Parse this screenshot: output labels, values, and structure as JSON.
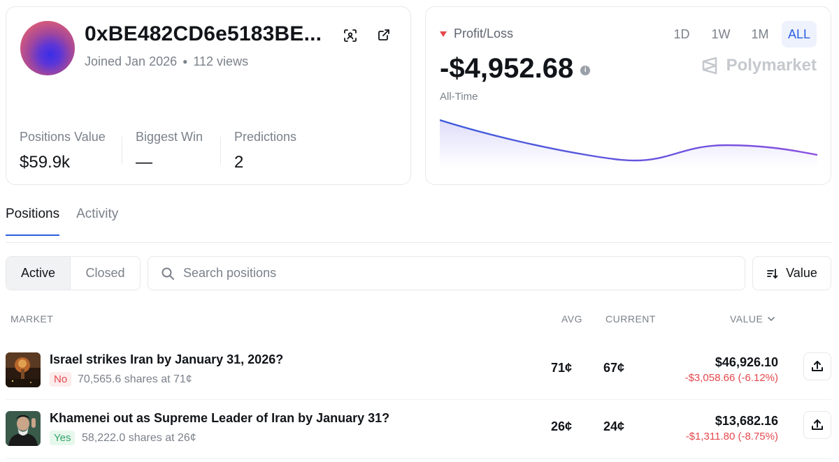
{
  "profile": {
    "address": "0xBE482CD6e5183BE...",
    "joined": "Joined Jan 2026",
    "views": "112 views",
    "stats": [
      {
        "label": "Positions Value",
        "value": "$59.9k"
      },
      {
        "label": "Biggest Win",
        "value": "—"
      },
      {
        "label": "Predictions",
        "value": "2"
      }
    ]
  },
  "pnl": {
    "label": "Profit/Loss",
    "value": "-$4,952.68",
    "period": "All-Time",
    "brand": "Polymarket",
    "ranges": [
      "1D",
      "1W",
      "1M",
      "ALL"
    ],
    "active_range": "ALL",
    "trend_color": "#e5484d"
  },
  "tabs": [
    "Positions",
    "Activity"
  ],
  "filter": {
    "segments": [
      "Active",
      "Closed"
    ],
    "search_placeholder": "Search positions",
    "sort_label": "Value"
  },
  "table": {
    "headers": {
      "market": "MARKET",
      "avg": "AVG",
      "current": "CURRENT",
      "value": "VALUE"
    },
    "rows": [
      {
        "title": "Israel strikes Iran by January 31, 2026?",
        "outcome": "No",
        "shares": "70,565.6 shares at 71¢",
        "avg": "71¢",
        "current": "67¢",
        "value": "$46,926.10",
        "change": "-$3,058.66 (-6.12%)"
      },
      {
        "title": "Khamenei out as Supreme Leader of Iran by January 31?",
        "outcome": "Yes",
        "shares": "58,222.0 shares at 26¢",
        "avg": "26¢",
        "current": "24¢",
        "value": "$13,682.16",
        "change": "-$1,311.80 (-8.75%)"
      }
    ]
  },
  "colors": {
    "accent": "#2d5fe3",
    "negative": "#e5484d",
    "positive": "#30a46c",
    "chart_line_start": "#3b5bdb",
    "chart_line_end": "#8b4fe0"
  }
}
